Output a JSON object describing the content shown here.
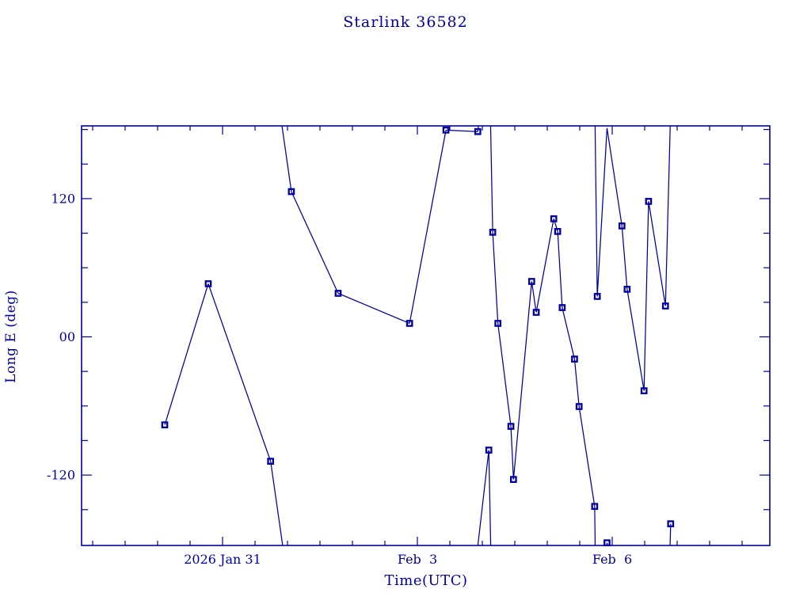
{
  "colors": {
    "plot": "#0000A0",
    "background": "#FFFFFF"
  },
  "chart_data": {
    "type": "line",
    "title": "Starlink 36582",
    "xlabel": "Time(UTC)",
    "ylabel": "Long E (deg)",
    "x_unit": "days since 2026 Jan 31 00:00 UTC",
    "x_range": [
      -2.17,
      8.44
    ],
    "y_range": [
      -182,
      182
    ],
    "wrap_degrees": 180,
    "grid": false,
    "legend": false,
    "marker": "open-square",
    "x_ticks_major": [
      {
        "t": 0,
        "label": "2026 Jan 31"
      },
      {
        "t": 3,
        "label": "Feb  3"
      },
      {
        "t": 6,
        "label": "Feb  6"
      }
    ],
    "x_tick_minor_step_days": 0.5,
    "y_ticks_major": [
      {
        "v": 120,
        "label": "120"
      },
      {
        "v": 0,
        "label": "00"
      },
      {
        "v": -120,
        "label": "-120"
      }
    ],
    "y_tick_minor_step_deg": 30,
    "series": [
      {
        "name": "Long E (deg)",
        "points": [
          {
            "t": -0.89,
            "lon": -76.4
          },
          {
            "t": -0.22,
            "lon": 46.1
          },
          {
            "t": 0.74,
            "lon": -108.0
          },
          {
            "t": 1.06,
            "lon": 126.1
          },
          {
            "t": 1.78,
            "lon": 37.8
          },
          {
            "t": 2.88,
            "lon": 11.7
          },
          {
            "t": 3.44,
            "lon": 179.5
          },
          {
            "t": 3.93,
            "lon": 178.2
          },
          {
            "t": 4.1,
            "lon": -98.3
          },
          {
            "t": 4.16,
            "lon": 90.8
          },
          {
            "t": 4.24,
            "lon": 11.7
          },
          {
            "t": 4.44,
            "lon": -77.7
          },
          {
            "t": 4.48,
            "lon": -123.8
          },
          {
            "t": 4.76,
            "lon": 48.1
          },
          {
            "t": 4.83,
            "lon": 21.3
          },
          {
            "t": 5.1,
            "lon": 102.5
          },
          {
            "t": 5.16,
            "lon": 91.5
          },
          {
            "t": 5.23,
            "lon": 25.4
          },
          {
            "t": 5.42,
            "lon": -19.3
          },
          {
            "t": 5.49,
            "lon": -60.5
          },
          {
            "t": 5.73,
            "lon": -147.2
          },
          {
            "t": 5.77,
            "lon": 35.1
          },
          {
            "t": 5.92,
            "lon": -178.8
          },
          {
            "t": 6.15,
            "lon": 96.3
          },
          {
            "t": 6.23,
            "lon": 41.3
          },
          {
            "t": 6.49,
            "lon": -46.8
          },
          {
            "t": 6.56,
            "lon": 117.6
          },
          {
            "t": 6.82,
            "lon": 26.8
          },
          {
            "t": 6.9,
            "lon": -162.3
          }
        ]
      }
    ]
  }
}
